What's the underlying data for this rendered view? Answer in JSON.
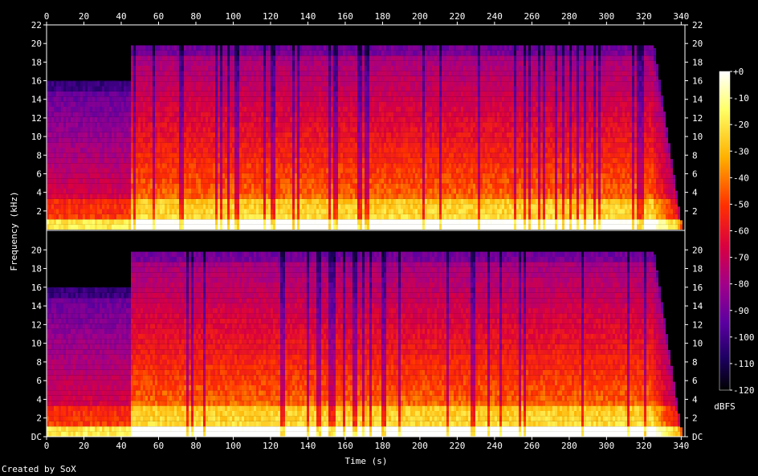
{
  "chart_data": {
    "type": "heatmap",
    "xlabel": "Time (s)",
    "ylabel": "Frequency (kHz)",
    "xlim": [
      0,
      342
    ],
    "x_ticks": [
      0,
      20,
      40,
      60,
      80,
      100,
      120,
      140,
      160,
      180,
      200,
      220,
      240,
      260,
      280,
      300,
      320,
      340
    ],
    "ylim": [
      0,
      22
    ],
    "y_tick_values": [
      0,
      2,
      4,
      6,
      8,
      10,
      12,
      14,
      16,
      18,
      20,
      22
    ],
    "y_tick_labels_top": [
      "22",
      "20",
      "18",
      "16",
      "14",
      "12",
      "10",
      "8",
      "6",
      "4",
      "2"
    ],
    "y_tick_labels_bottom": [
      "DC",
      "2",
      "4",
      "6",
      "8",
      "10",
      "12",
      "14",
      "16",
      "18",
      "20"
    ],
    "channels": 2,
    "colorbar": {
      "unit": "dBFS",
      "range": [
        -120,
        0
      ],
      "ticks": [
        "+0",
        "-10",
        "-20",
        "-30",
        "-40",
        "-50",
        "-60",
        "-70",
        "-80",
        "-90",
        "-100",
        "-110",
        "-120"
      ]
    },
    "segments": [
      {
        "t_start": 0,
        "t_end": 45,
        "approx_cutoff_khz": 16,
        "character": "quiet intro, energy below ~10 kHz"
      },
      {
        "t_start": 45,
        "t_end": 325,
        "approx_cutoff_khz": 19.8,
        "character": "full band, loud"
      },
      {
        "t_start": 325,
        "t_end": 340,
        "approx_cutoff_khz": 0,
        "character": "fade out"
      }
    ]
  },
  "footer": {
    "credit": "Created by SoX"
  }
}
